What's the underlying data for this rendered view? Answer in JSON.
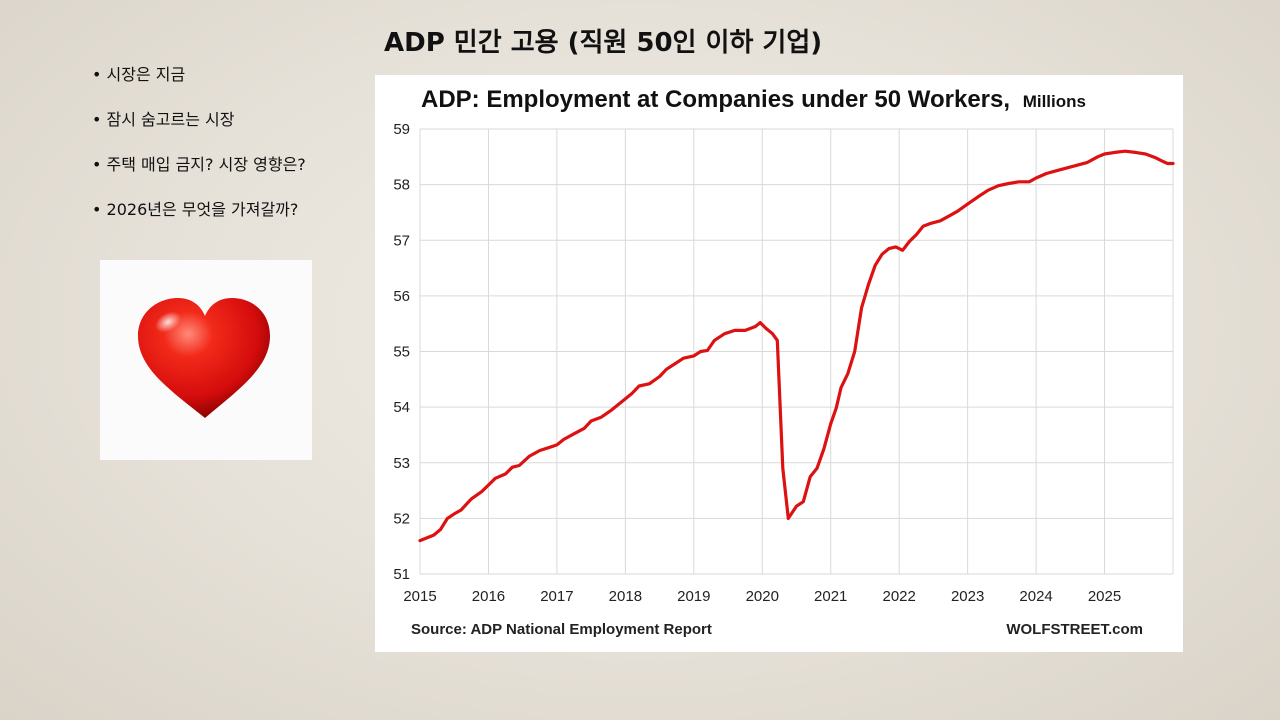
{
  "slide": {
    "title": "ADP 민간 고용 (직원 50인 이하 기업)",
    "bullets": [
      "시장은 지금",
      "잠시 숨고르는 시장",
      "주택 매입 금지? 시장 영향은?",
      "2026년은 무엇을 가져갈까?"
    ],
    "heart_icon": "heart-icon"
  },
  "colors": {
    "line": "#dd1111",
    "grid": "#d9d9d9",
    "heart": "#e01010"
  },
  "chart_data": {
    "type": "line",
    "title": "ADP: Employment at Companies under 50 Workers,",
    "title_unit": "Millions",
    "source": "Source: ADP National Employment Report",
    "credit": "WOLFSTREET.com",
    "xlim": [
      2015,
      2026
    ],
    "ylim": [
      51,
      59
    ],
    "yticks": [
      51,
      52,
      53,
      54,
      55,
      56,
      57,
      58,
      59
    ],
    "xticks": [
      2015,
      2016,
      2017,
      2018,
      2019,
      2020,
      2021,
      2022,
      2023,
      2024,
      2025
    ],
    "grid": true,
    "series": [
      {
        "points": [
          [
            2015.0,
            51.6
          ],
          [
            2015.2,
            51.7
          ],
          [
            2015.3,
            51.8
          ],
          [
            2015.4,
            52.0
          ],
          [
            2015.5,
            52.08
          ],
          [
            2015.6,
            52.15
          ],
          [
            2015.75,
            52.35
          ],
          [
            2015.9,
            52.48
          ],
          [
            2016.0,
            52.6
          ],
          [
            2016.1,
            52.72
          ],
          [
            2016.25,
            52.8
          ],
          [
            2016.35,
            52.92
          ],
          [
            2016.45,
            52.95
          ],
          [
            2016.6,
            53.12
          ],
          [
            2016.75,
            53.22
          ],
          [
            2016.9,
            53.28
          ],
          [
            2017.0,
            53.32
          ],
          [
            2017.1,
            53.42
          ],
          [
            2017.25,
            53.52
          ],
          [
            2017.4,
            53.62
          ],
          [
            2017.5,
            53.75
          ],
          [
            2017.65,
            53.82
          ],
          [
            2017.8,
            53.95
          ],
          [
            2017.95,
            54.1
          ],
          [
            2018.1,
            54.25
          ],
          [
            2018.2,
            54.38
          ],
          [
            2018.35,
            54.42
          ],
          [
            2018.5,
            54.55
          ],
          [
            2018.6,
            54.68
          ],
          [
            2018.75,
            54.8
          ],
          [
            2018.85,
            54.88
          ],
          [
            2019.0,
            54.92
          ],
          [
            2019.1,
            55.0
          ],
          [
            2019.2,
            55.02
          ],
          [
            2019.3,
            55.2
          ],
          [
            2019.45,
            55.32
          ],
          [
            2019.6,
            55.38
          ],
          [
            2019.75,
            55.38
          ],
          [
            2019.9,
            55.45
          ],
          [
            2019.97,
            55.52
          ],
          [
            2020.05,
            55.42
          ],
          [
            2020.15,
            55.32
          ],
          [
            2020.22,
            55.2
          ],
          [
            2020.3,
            52.9
          ],
          [
            2020.38,
            52.0
          ],
          [
            2020.5,
            52.22
          ],
          [
            2020.6,
            52.3
          ],
          [
            2020.7,
            52.75
          ],
          [
            2020.8,
            52.9
          ],
          [
            2020.9,
            53.25
          ],
          [
            2021.0,
            53.7
          ],
          [
            2021.08,
            53.98
          ],
          [
            2021.15,
            54.35
          ],
          [
            2021.25,
            54.6
          ],
          [
            2021.35,
            55.0
          ],
          [
            2021.45,
            55.78
          ],
          [
            2021.55,
            56.2
          ],
          [
            2021.65,
            56.55
          ],
          [
            2021.75,
            56.75
          ],
          [
            2021.85,
            56.85
          ],
          [
            2021.95,
            56.88
          ],
          [
            2022.05,
            56.82
          ],
          [
            2022.15,
            56.98
          ],
          [
            2022.25,
            57.1
          ],
          [
            2022.35,
            57.25
          ],
          [
            2022.45,
            57.3
          ],
          [
            2022.6,
            57.35
          ],
          [
            2022.75,
            57.45
          ],
          [
            2022.85,
            57.52
          ],
          [
            2023.0,
            57.65
          ],
          [
            2023.15,
            57.78
          ],
          [
            2023.3,
            57.9
          ],
          [
            2023.45,
            57.98
          ],
          [
            2023.6,
            58.02
          ],
          [
            2023.75,
            58.05
          ],
          [
            2023.9,
            58.05
          ],
          [
            2024.0,
            58.12
          ],
          [
            2024.15,
            58.2
          ],
          [
            2024.3,
            58.25
          ],
          [
            2024.45,
            58.3
          ],
          [
            2024.6,
            58.35
          ],
          [
            2024.75,
            58.4
          ],
          [
            2024.9,
            58.5
          ],
          [
            2025.0,
            58.55
          ],
          [
            2025.15,
            58.58
          ],
          [
            2025.3,
            58.6
          ],
          [
            2025.45,
            58.58
          ],
          [
            2025.6,
            58.55
          ],
          [
            2025.75,
            58.48
          ],
          [
            2025.85,
            58.42
          ],
          [
            2025.92,
            58.38
          ],
          [
            2026.0,
            58.38
          ]
        ]
      }
    ]
  }
}
